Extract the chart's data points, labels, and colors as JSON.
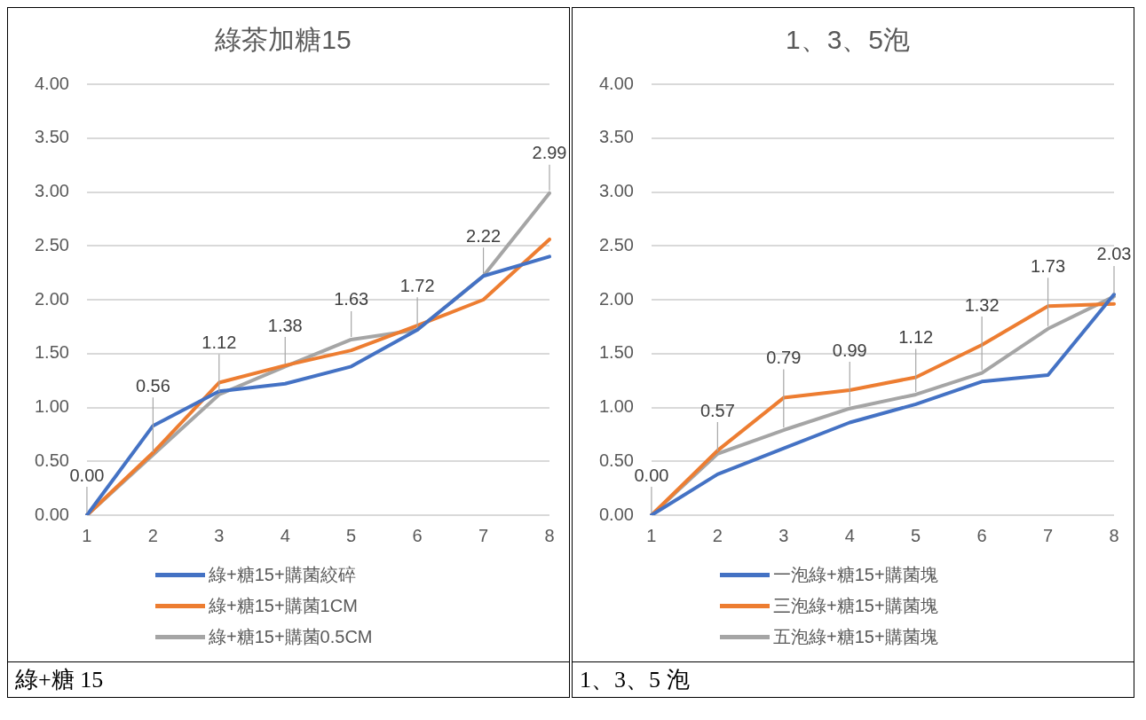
{
  "chart_data": [
    {
      "type": "line",
      "title": "綠茶加糖15",
      "categories": [
        "1",
        "2",
        "3",
        "4",
        "5",
        "6",
        "7",
        "8"
      ],
      "ylim": [
        0,
        4
      ],
      "yticks": [
        {
          "value": 0,
          "label": "0.00"
        },
        {
          "value": 0.5,
          "label": "0.50"
        },
        {
          "value": 1,
          "label": "1.00"
        },
        {
          "value": 1.5,
          "label": "1.50"
        },
        {
          "value": 2,
          "label": "2.00"
        },
        {
          "value": 2.5,
          "label": "2.50"
        },
        {
          "value": 3,
          "label": "3.00"
        },
        {
          "value": 3.5,
          "label": "3.50"
        },
        {
          "value": 4,
          "label": "4.00"
        }
      ],
      "grid": "y",
      "legend": "bottom",
      "marker": "none",
      "annotations": [
        "綠+糖 15"
      ],
      "series": [
        {
          "name": "綠+糖15+購菌絞碎",
          "color": "#4472c4",
          "values": [
            0,
            0.83,
            1.15,
            1.22,
            1.38,
            1.72,
            2.22,
            2.4
          ]
        },
        {
          "name": "綠+糖15+購菌1CM",
          "color": "#ed7d31",
          "values": [
            0,
            0.58,
            1.23,
            1.39,
            1.53,
            1.76,
            2.0,
            2.56
          ]
        },
        {
          "name": "綠+糖15+購菌0.5CM",
          "color": "#a5a5a5",
          "values": [
            0,
            0.56,
            1.12,
            1.38,
            1.63,
            1.72,
            2.22,
            2.99
          ],
          "value_labels": [
            "0.00",
            "0.56",
            "1.12",
            "1.38",
            "1.63",
            "1.72",
            "2.22",
            "2.99"
          ]
        }
      ]
    },
    {
      "type": "line",
      "title": "1、3、5泡",
      "categories": [
        "1",
        "2",
        "3",
        "4",
        "5",
        "6",
        "7",
        "8"
      ],
      "ylim": [
        0,
        4
      ],
      "yticks": [
        {
          "value": 0,
          "label": "0.00"
        },
        {
          "value": 0.5,
          "label": "0.50"
        },
        {
          "value": 1,
          "label": "1.00"
        },
        {
          "value": 1.5,
          "label": "1.50"
        },
        {
          "value": 2,
          "label": "2.00"
        },
        {
          "value": 2.5,
          "label": "2.50"
        },
        {
          "value": 3,
          "label": "3.00"
        },
        {
          "value": 3.5,
          "label": "3.50"
        },
        {
          "value": 4,
          "label": "4.00"
        }
      ],
      "grid": "y",
      "legend": "bottom",
      "marker": "none",
      "annotations": [
        "1、3、5 泡"
      ],
      "series": [
        {
          "name": "一泡綠+糖15+購菌塊",
          "color": "#4472c4",
          "values": [
            0,
            0.38,
            0.62,
            0.86,
            1.03,
            1.24,
            1.3,
            2.05
          ]
        },
        {
          "name": "三泡綠+糖15+購菌塊",
          "color": "#ed7d31",
          "values": [
            0,
            0.6,
            1.09,
            1.16,
            1.28,
            1.58,
            1.94,
            1.96
          ]
        },
        {
          "name": "五泡綠+糖15+購菌塊",
          "color": "#a5a5a5",
          "values": [
            0,
            0.57,
            0.79,
            0.99,
            1.12,
            1.32,
            1.73,
            2.03
          ],
          "value_labels": [
            "0.00",
            "0.57",
            "0.79",
            "0.99",
            "1.12",
            "1.32",
            "1.73",
            "2.03"
          ]
        }
      ]
    }
  ]
}
